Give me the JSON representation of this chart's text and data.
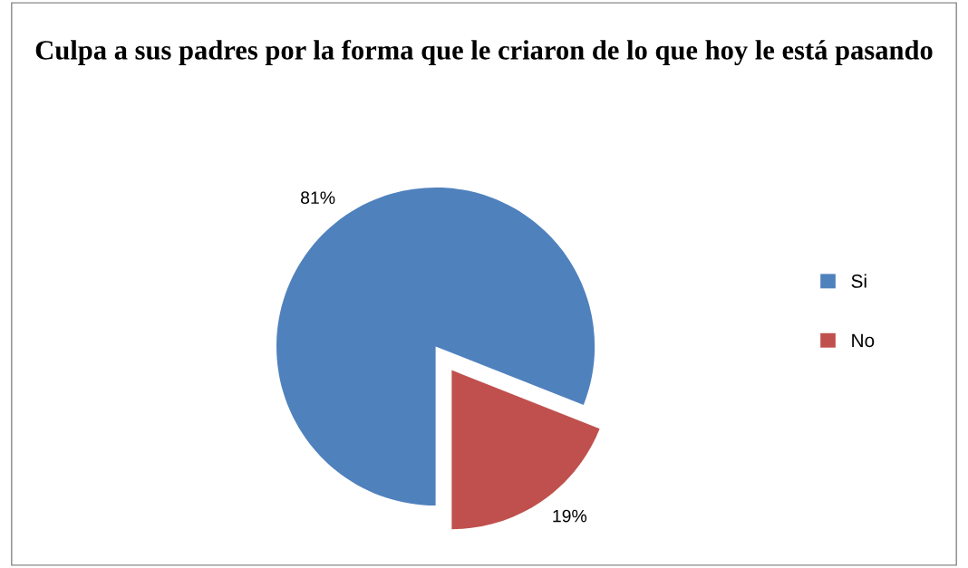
{
  "chart_data": {
    "type": "pie",
    "title": "Culpa a sus padres por la forma que le criaron de lo que hoy le está pasando",
    "categories": [
      "Si",
      "No"
    ],
    "values": [
      81,
      19
    ],
    "colors": [
      "#4f81bd",
      "#c0504d"
    ],
    "value_labels": [
      "81%",
      "19%"
    ],
    "legend": "right"
  }
}
